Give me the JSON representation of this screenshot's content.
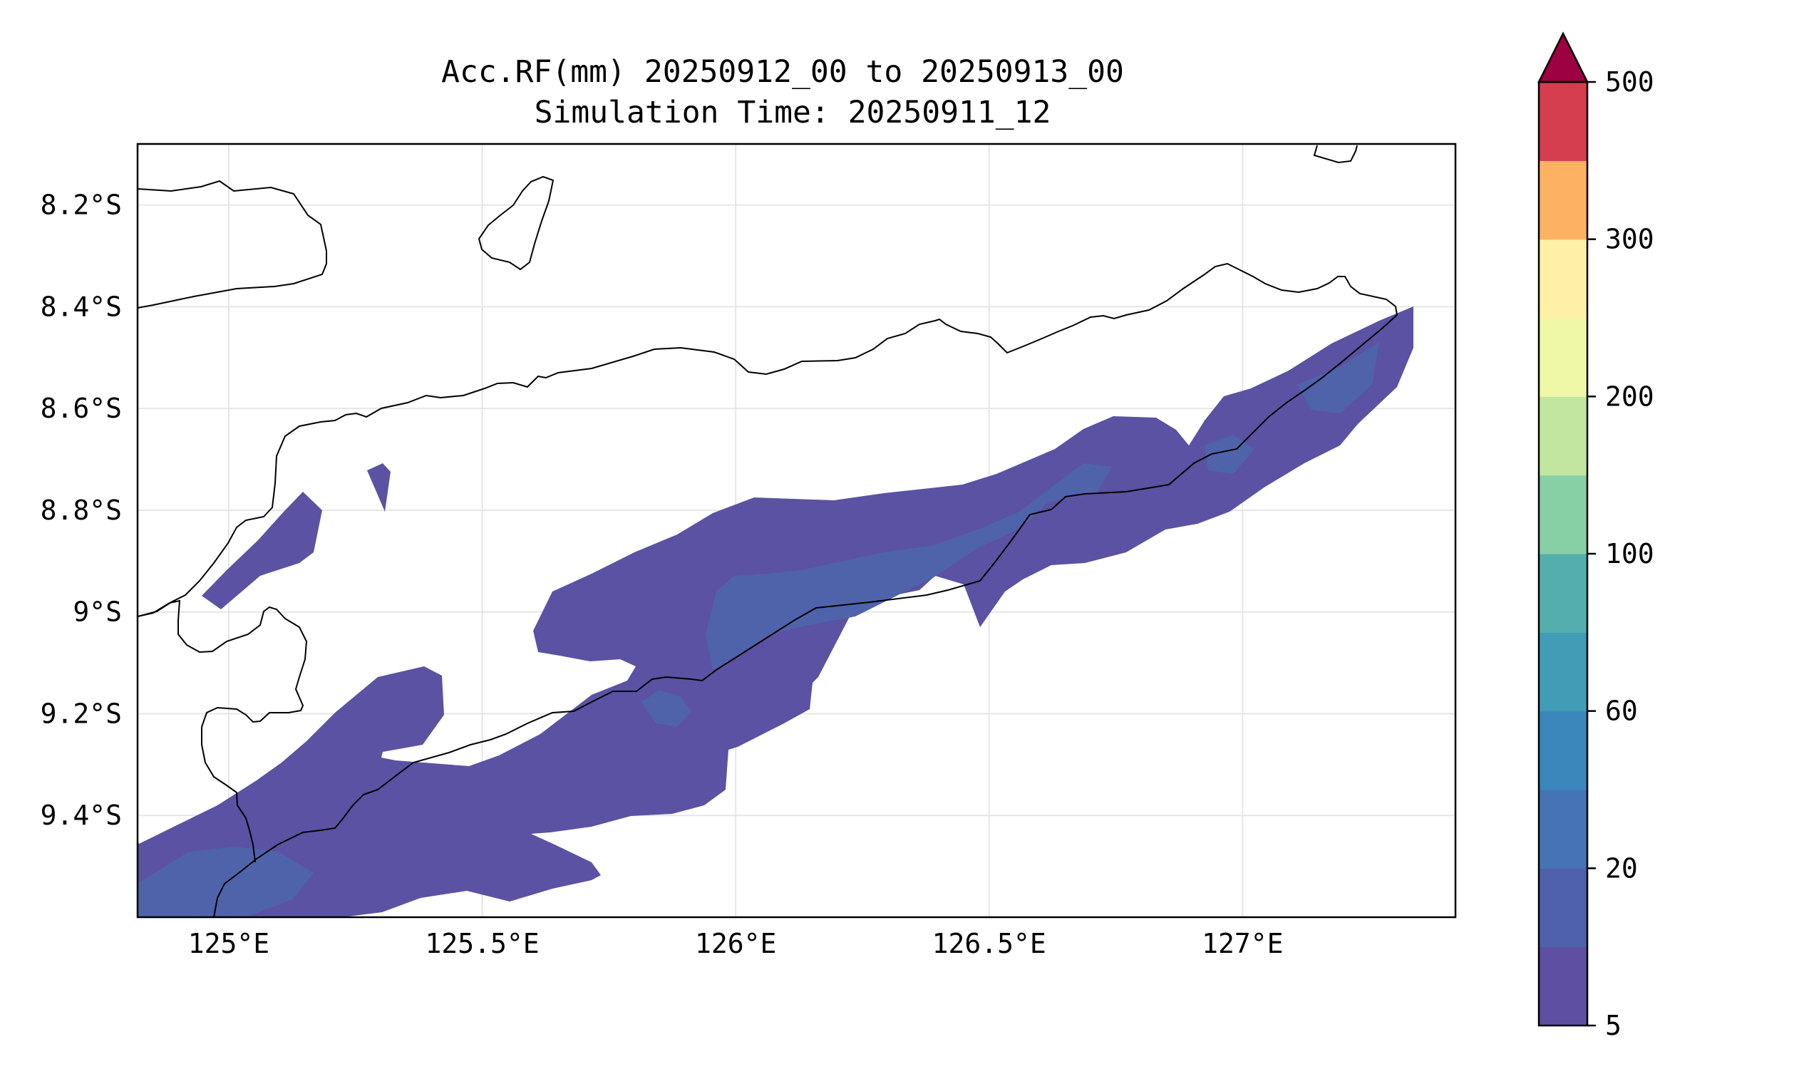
{
  "title": {
    "line1": "Acc.RF(mm) 20250912_00 to 20250913_00",
    "line2": "Simulation Time: 20250911_12"
  },
  "map": {
    "lon_range": [
      124.82,
      127.42
    ],
    "lat_range": [
      -9.6,
      -8.08
    ],
    "lon_ticks": [
      {
        "value": 125.0,
        "label": "125°E"
      },
      {
        "value": 125.5,
        "label": "125.5°E"
      },
      {
        "value": 126.0,
        "label": "126°E"
      },
      {
        "value": 126.5,
        "label": "126.5°E"
      },
      {
        "value": 127.0,
        "label": "127°E"
      }
    ],
    "lat_ticks": [
      {
        "value": -8.2,
        "label": "8.2°S"
      },
      {
        "value": -8.4,
        "label": "8.4°S"
      },
      {
        "value": -8.6,
        "label": "8.6°S"
      },
      {
        "value": -8.8,
        "label": "8.8°S"
      },
      {
        "value": -9.0,
        "label": "9°S"
      },
      {
        "value": -9.2,
        "label": "9.2°S"
      },
      {
        "value": -9.4,
        "label": "9.4°S"
      }
    ],
    "grid": true,
    "coastline_color": "#000000",
    "rain_colors": {
      "level_5_10": "#5b52a3",
      "level_10_20": "#4f63ab"
    }
  },
  "colorbar": {
    "extend": "max",
    "levels": [
      {
        "color": "#5e4fa2"
      },
      {
        "color": "#4f61ab"
      },
      {
        "color": "#4673b3"
      },
      {
        "color": "#3b87bc"
      },
      {
        "color": "#429cb6"
      },
      {
        "color": "#54aead"
      },
      {
        "color": "#87cfa4"
      },
      {
        "color": "#c2e59f"
      },
      {
        "color": "#eef8a6"
      },
      {
        "color": "#fef0a7"
      },
      {
        "color": "#fdb163"
      },
      {
        "color": "#d53e4f"
      }
    ],
    "extend_color": "#9e0142",
    "tick_labels": [
      {
        "index": 0,
        "label": "5"
      },
      {
        "index": 2,
        "label": "20"
      },
      {
        "index": 4,
        "label": "60"
      },
      {
        "index": 6,
        "label": "100"
      },
      {
        "index": 8,
        "label": "200"
      },
      {
        "index": 10,
        "label": "300"
      },
      {
        "index": 12,
        "label": "500"
      }
    ]
  }
}
